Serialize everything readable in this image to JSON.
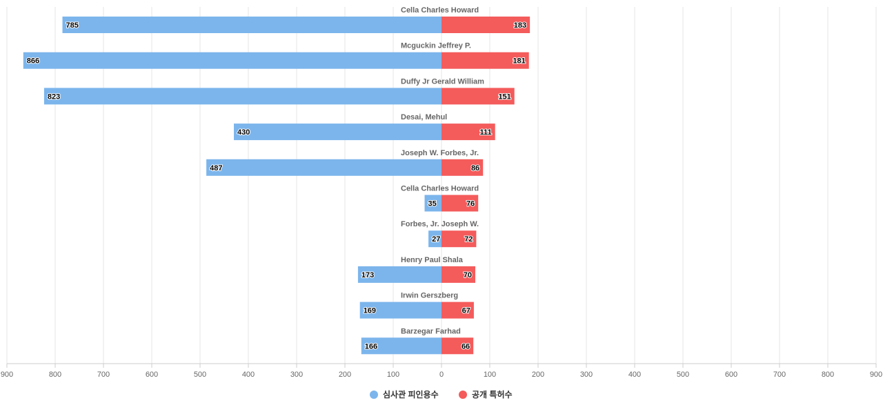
{
  "chart_data": {
    "type": "bar",
    "orientation": "horizontal-diverging",
    "categories": [
      "Cella Charles Howard",
      "Mcguckin Jeffrey P.",
      "Duffy Jr Gerald William",
      "Desai, Mehul",
      "Joseph W. Forbes, Jr.",
      "Cella Charles Howard",
      "Forbes, Jr. Joseph W.",
      "Henry Paul Shala",
      "Irwin Gerszberg",
      "Barzegar Farhad"
    ],
    "series": [
      {
        "name": "심사관 피인용수",
        "side": "left",
        "color": "#7cb5ec",
        "values": [
          785,
          866,
          823,
          430,
          487,
          35,
          27,
          173,
          169,
          166
        ]
      },
      {
        "name": "공개 특허수",
        "side": "right",
        "color": "#f45b5b",
        "values": [
          183,
          181,
          151,
          111,
          86,
          76,
          72,
          70,
          67,
          66
        ]
      }
    ],
    "x_ticks": [
      "900",
      "800",
      "700",
      "600",
      "500",
      "400",
      "300",
      "200",
      "100",
      "0",
      "100",
      "200",
      "300",
      "400",
      "500",
      "600",
      "700",
      "800",
      "900"
    ],
    "xlim": [
      -900,
      900
    ],
    "grid": true,
    "legend_position": "bottom-center"
  }
}
